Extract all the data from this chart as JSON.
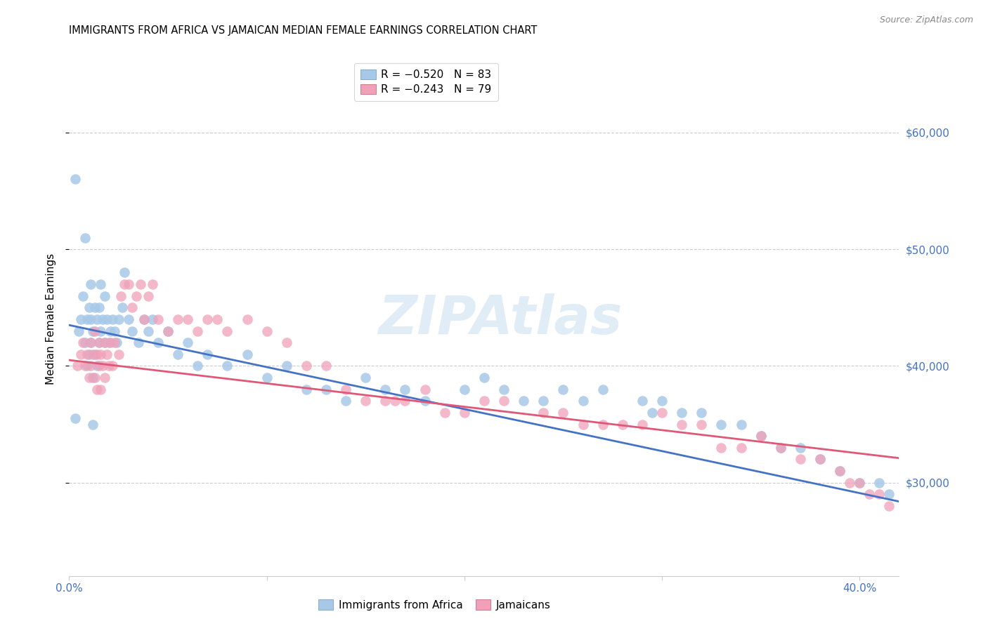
{
  "title": "IMMIGRANTS FROM AFRICA VS JAMAICAN MEDIAN FEMALE EARNINGS CORRELATION CHART",
  "source": "Source: ZipAtlas.com",
  "ylabel": "Median Female Earnings",
  "legend_label1": "Immigrants from Africa",
  "legend_label2": "Jamaicans",
  "blue_color": "#a8c8e8",
  "pink_color": "#f0a0b8",
  "line_blue": "#4472c4",
  "line_pink": "#e05878",
  "watermark": "ZIPAtlas",
  "xlim": [
    0.0,
    0.42
  ],
  "ylim": [
    22000,
    66000
  ],
  "yticks": [
    30000,
    40000,
    50000,
    60000
  ],
  "ytick_labels": [
    "$30,000",
    "$40,000",
    "$50,000",
    "$60,000"
  ],
  "blue_intercept": 43500,
  "blue_slope": -36000,
  "pink_intercept": 40500,
  "pink_slope": -20000,
  "grid_color": "#cccccc",
  "title_color": "#000000",
  "source_color": "#888888",
  "axis_color": "#4472c4",
  "legend1_label1": "R = −0.520   N = 83",
  "legend1_label2": "R = −0.243   N = 79",
  "blue_points_x": [
    0.003,
    0.005,
    0.006,
    0.007,
    0.008,
    0.009,
    0.009,
    0.01,
    0.01,
    0.011,
    0.011,
    0.011,
    0.012,
    0.012,
    0.013,
    0.013,
    0.014,
    0.014,
    0.015,
    0.015,
    0.016,
    0.016,
    0.017,
    0.018,
    0.018,
    0.019,
    0.02,
    0.021,
    0.022,
    0.023,
    0.024,
    0.025,
    0.027,
    0.028,
    0.03,
    0.032,
    0.035,
    0.038,
    0.04,
    0.042,
    0.045,
    0.05,
    0.055,
    0.06,
    0.065,
    0.07,
    0.08,
    0.09,
    0.1,
    0.11,
    0.12,
    0.13,
    0.14,
    0.15,
    0.16,
    0.17,
    0.18,
    0.2,
    0.21,
    0.22,
    0.23,
    0.24,
    0.25,
    0.26,
    0.27,
    0.29,
    0.295,
    0.3,
    0.31,
    0.32,
    0.33,
    0.34,
    0.35,
    0.36,
    0.37,
    0.38,
    0.39,
    0.4,
    0.41,
    0.415,
    0.003,
    0.008,
    0.012
  ],
  "blue_points_y": [
    35500,
    43000,
    44000,
    46000,
    42000,
    44000,
    40000,
    45000,
    41000,
    47000,
    44000,
    42000,
    43000,
    39000,
    45000,
    41000,
    44000,
    40000,
    42000,
    45000,
    43000,
    47000,
    44000,
    42000,
    46000,
    44000,
    42000,
    43000,
    44000,
    43000,
    42000,
    44000,
    45000,
    48000,
    44000,
    43000,
    42000,
    44000,
    43000,
    44000,
    42000,
    43000,
    41000,
    42000,
    40000,
    41000,
    40000,
    41000,
    39000,
    40000,
    38000,
    38000,
    37000,
    39000,
    38000,
    38000,
    37000,
    38000,
    39000,
    38000,
    37000,
    37000,
    38000,
    37000,
    38000,
    37000,
    36000,
    37000,
    36000,
    36000,
    35000,
    35000,
    34000,
    33000,
    33000,
    32000,
    31000,
    30000,
    30000,
    29000,
    56000,
    51000,
    35000
  ],
  "pink_points_x": [
    0.004,
    0.006,
    0.007,
    0.008,
    0.009,
    0.01,
    0.011,
    0.011,
    0.012,
    0.013,
    0.013,
    0.014,
    0.014,
    0.015,
    0.015,
    0.016,
    0.016,
    0.017,
    0.018,
    0.018,
    0.019,
    0.02,
    0.021,
    0.022,
    0.023,
    0.025,
    0.026,
    0.028,
    0.03,
    0.032,
    0.034,
    0.036,
    0.038,
    0.04,
    0.042,
    0.045,
    0.05,
    0.055,
    0.06,
    0.065,
    0.07,
    0.075,
    0.08,
    0.09,
    0.1,
    0.11,
    0.12,
    0.13,
    0.14,
    0.15,
    0.16,
    0.165,
    0.17,
    0.18,
    0.19,
    0.2,
    0.21,
    0.22,
    0.24,
    0.25,
    0.26,
    0.27,
    0.28,
    0.29,
    0.3,
    0.31,
    0.32,
    0.33,
    0.34,
    0.35,
    0.36,
    0.37,
    0.38,
    0.39,
    0.395,
    0.4,
    0.405,
    0.41,
    0.415
  ],
  "pink_points_y": [
    40000,
    41000,
    42000,
    40000,
    41000,
    39000,
    42000,
    40000,
    41000,
    43000,
    39000,
    41000,
    38000,
    42000,
    40000,
    41000,
    38000,
    40000,
    42000,
    39000,
    41000,
    40000,
    42000,
    40000,
    42000,
    41000,
    46000,
    47000,
    47000,
    45000,
    46000,
    47000,
    44000,
    46000,
    47000,
    44000,
    43000,
    44000,
    44000,
    43000,
    44000,
    44000,
    43000,
    44000,
    43000,
    42000,
    40000,
    40000,
    38000,
    37000,
    37000,
    37000,
    37000,
    38000,
    36000,
    36000,
    37000,
    37000,
    36000,
    36000,
    35000,
    35000,
    35000,
    35000,
    36000,
    35000,
    35000,
    33000,
    33000,
    34000,
    33000,
    32000,
    32000,
    31000,
    30000,
    30000,
    29000,
    29000,
    28000
  ]
}
